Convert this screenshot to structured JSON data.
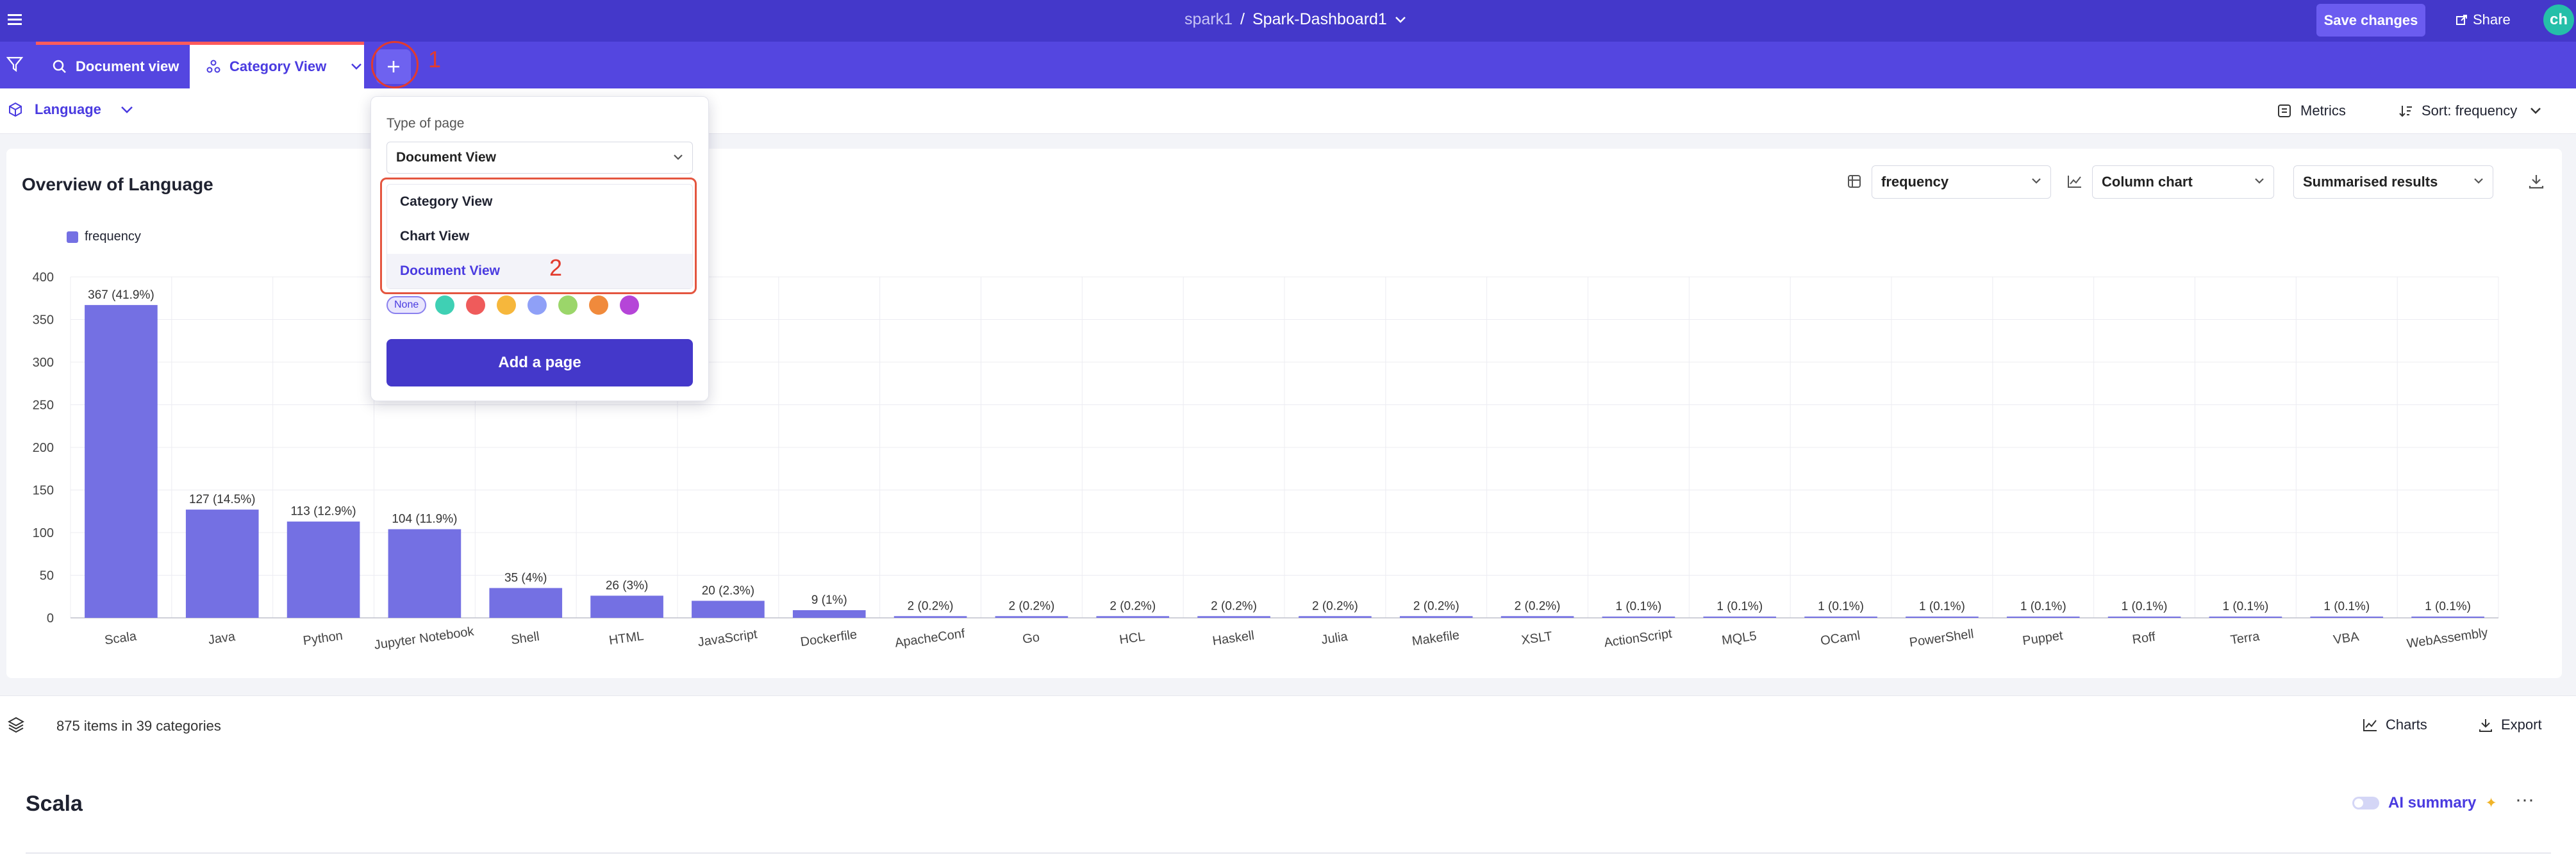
{
  "header": {
    "workspace": "spark1",
    "separator": "/",
    "dashboard_name": "Spark-Dashboard1",
    "save_label": "Save changes",
    "share_label": "Share",
    "avatar_initials": "ch"
  },
  "tabs": [
    {
      "label": "Document view",
      "icon": "search-icon"
    },
    {
      "label": "Category View",
      "icon": "category-icon"
    }
  ],
  "annotations": {
    "marker_1": "1",
    "marker_2": "2"
  },
  "subheader": {
    "field": "Language",
    "metrics_label": "Metrics",
    "sort_label": "Sort: frequency"
  },
  "add_page_menu": {
    "type_label": "Type of page",
    "selected": "Document View",
    "options": [
      "Category View",
      "Chart View",
      "Document View"
    ],
    "color_none_label": "None",
    "colors": [
      "#3fd0b4",
      "#ef5b5b",
      "#f6b73c",
      "#8fa0f7",
      "#9bd66a",
      "#f08a3c",
      "#b545d8"
    ],
    "add_button": "Add a page"
  },
  "chart_panel": {
    "title": "Overview of Language",
    "measure_select": "frequency",
    "chart_type_select": "Column chart",
    "results_select": "Summarised results"
  },
  "chart_data": {
    "type": "bar",
    "legend": [
      "frequency"
    ],
    "legend_position": "top-left",
    "grid": true,
    "ylim": [
      0,
      400
    ],
    "yticks": [
      0,
      50,
      100,
      150,
      200,
      250,
      300,
      350,
      400
    ],
    "categories": [
      "Scala",
      "Java",
      "Python",
      "Jupyter Notebook",
      "Shell",
      "HTML",
      "JavaScript",
      "Dockerfile",
      "ApacheConf",
      "Go",
      "HCL",
      "Haskell",
      "Julia",
      "Makefile",
      "XSLT",
      "ActionScript",
      "MQL5",
      "OCaml",
      "PowerShell",
      "Puppet",
      "Roff",
      "Terra",
      "VBA",
      "WebAssembly"
    ],
    "series": [
      {
        "name": "frequency",
        "color": "#7470e3",
        "values": [
          367,
          127,
          113,
          104,
          35,
          26,
          20,
          9,
          2,
          2,
          2,
          2,
          2,
          2,
          2,
          1,
          1,
          1,
          1,
          1,
          1,
          1,
          1,
          1
        ]
      }
    ],
    "data_labels": [
      "367 (41.9%)",
      "127 (14.5%)",
      "113 (12.9%)",
      "104 (11.9%)",
      "35 (4%)",
      "26 (3%)",
      "20 (2.3%)",
      "9 (1%)",
      "2 (0.2%)",
      "2 (0.2%)",
      "2 (0.2%)",
      "2 (0.2%)",
      "2 (0.2%)",
      "2 (0.2%)",
      "2 (0.2%)",
      "1 (0.1%)",
      "1 (0.1%)",
      "1 (0.1%)",
      "1 (0.1%)",
      "1 (0.1%)",
      "1 (0.1%)",
      "1 (0.1%)",
      "1 (0.1%)",
      "1 (0.1%)"
    ]
  },
  "footer": {
    "summary": "875 items in 39 categories",
    "charts_label": "Charts",
    "export_label": "Export"
  },
  "category_section": {
    "title": "Scala",
    "ai_summary_label": "AI summary",
    "more_label": "···"
  }
}
